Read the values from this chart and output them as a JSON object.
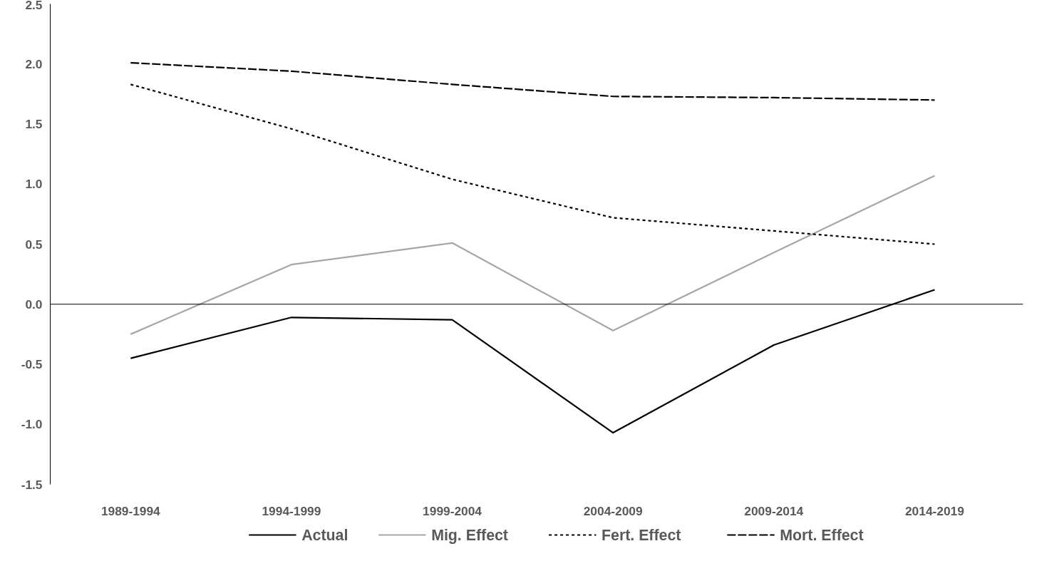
{
  "chart_data": {
    "type": "line",
    "categories": [
      "1989-1994",
      "1994-1999",
      "1999-2004",
      "2004-2009",
      "2009-2014",
      "2014-2019"
    ],
    "ylim": [
      -1.5,
      2.5
    ],
    "yticks": [
      {
        "value": -1.5,
        "label": "-1.5"
      },
      {
        "value": -1,
        "label": "-1.0"
      },
      {
        "value": -0.5,
        "label": "-0.5"
      },
      {
        "value": 0,
        "label": "0.0"
      },
      {
        "value": 0.5,
        "label": "0.5"
      },
      {
        "value": 1,
        "label": "1.0"
      },
      {
        "value": 1.5,
        "label": "1.5"
      },
      {
        "value": 2,
        "label": "2.0"
      },
      {
        "value": 2.5,
        "label": "2.5"
      }
    ],
    "legend": "bottom",
    "marker": "none",
    "series": [
      {
        "name": "Actual",
        "color": "#000000",
        "line_style": "solid",
        "values": [
          -0.45,
          -0.11,
          -0.13,
          -1.07,
          -0.34,
          0.12
        ]
      },
      {
        "name": "Mig. Effect",
        "color": "#a6a6a6",
        "line_style": "solid",
        "values": [
          -0.25,
          0.33,
          0.51,
          -0.22,
          0.43,
          1.07
        ]
      },
      {
        "name": "Fert. Effect",
        "color": "#000000",
        "line_style": "dashed",
        "values": [
          1.83,
          1.46,
          1.04,
          0.72,
          0.61,
          0.5
        ]
      },
      {
        "name": "Mort. Effect",
        "color": "#000000",
        "line_style": "longdash",
        "values": [
          2.01,
          1.94,
          1.83,
          1.73,
          1.72,
          1.7
        ]
      }
    ]
  }
}
